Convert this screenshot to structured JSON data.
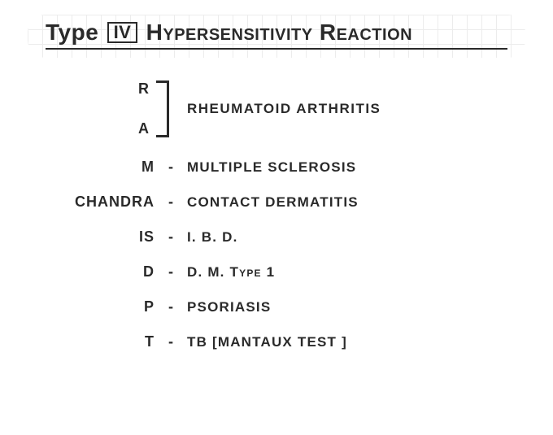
{
  "title": {
    "word1": "Type",
    "roman": "IV",
    "word2": "Hypersensitivity",
    "word3": "Reaction",
    "fontsize": 28,
    "underline_color": "#2a2a2a",
    "grid_color": "#ececec"
  },
  "colors": {
    "text": "#2a2a2a",
    "background": "#ffffff"
  },
  "bracket_group": {
    "top_mnemonic": "R",
    "bottom_mnemonic": "A",
    "definition": "RHEUMATOID  ARTHRITIS"
  },
  "rows": [
    {
      "mnemonic": "M",
      "definition": "MULTIPLE  SCLEROSIS"
    },
    {
      "mnemonic": "CHANDRA",
      "definition": "CONTACT  DERMATITIS"
    },
    {
      "mnemonic": "IS",
      "definition": "I. B. D."
    },
    {
      "mnemonic": "D",
      "definition": "D. M.  Type  1"
    },
    {
      "mnemonic": "P",
      "definition": "PSORIASIS"
    },
    {
      "mnemonic": "T",
      "definition": "TB  [MANTAUX  TEST ]"
    }
  ]
}
